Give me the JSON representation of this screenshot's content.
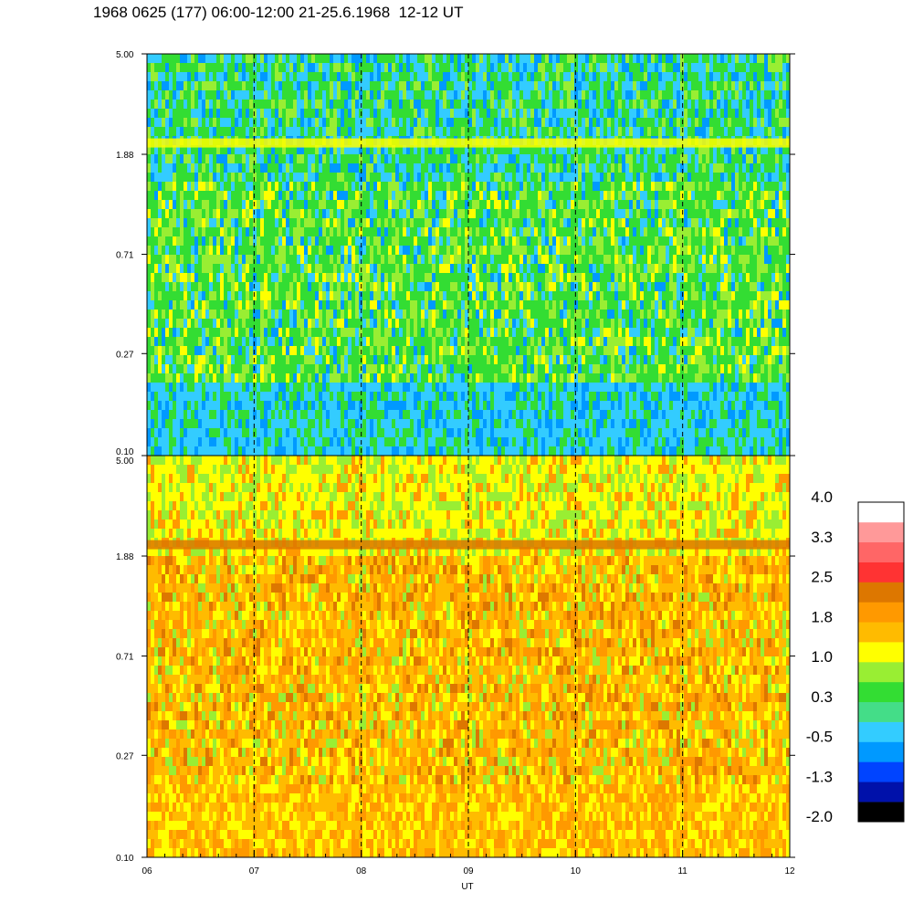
{
  "title": "1968 0625 (177) 06:00-12:00 21-25.6.1968  12-12 UT",
  "chart_data": [
    {
      "type": "heatmap",
      "name": "upper panel",
      "x_ticks": [
        "06",
        "07",
        "08",
        "09",
        "10",
        "11",
        "12"
      ],
      "x_range": [
        6,
        12
      ],
      "y_ticks": [
        "5.00",
        "1.88",
        "0.71",
        "0.27",
        "0.10"
      ],
      "y_scale": "log",
      "y_range": [
        0.1,
        5.0
      ],
      "dominant_colors": [
        "#33dd33",
        "#99ee33",
        "#33ccff",
        "#0099ff",
        "#ffff00"
      ],
      "bright_band_at_y": 2.1,
      "hour_gridlines": "dashed"
    },
    {
      "type": "heatmap",
      "name": "lower panel",
      "x_ticks": [
        "06",
        "07",
        "08",
        "09",
        "10",
        "11",
        "12"
      ],
      "x_range": [
        6,
        12
      ],
      "y_ticks": [
        "5.00",
        "1.88",
        "0.71",
        "0.27",
        "0.10"
      ],
      "y_scale": "log",
      "y_range": [
        0.1,
        5.0
      ],
      "dominant_colors": [
        "#ffbb00",
        "#ff9900",
        "#ffff00",
        "#99ee33",
        "#dd7700"
      ],
      "dark_band_at_y": 2.1,
      "hour_gridlines": "dashed"
    }
  ],
  "xlabel": "UT",
  "colorbar": {
    "labels": [
      "4.0",
      "3.3",
      "2.5",
      "1.8",
      "1.0",
      "0.3",
      "-0.5",
      "-1.3",
      "-2.0"
    ],
    "colors": [
      "#000000",
      "#0011aa",
      "#0044ff",
      "#0099ff",
      "#33ccff",
      "#44dd88",
      "#33dd33",
      "#99ee33",
      "#ffff00",
      "#ffbb00",
      "#ff9900",
      "#dd7700",
      "#ff3333",
      "#ff6666",
      "#ff9999",
      "#ffffff"
    ]
  }
}
